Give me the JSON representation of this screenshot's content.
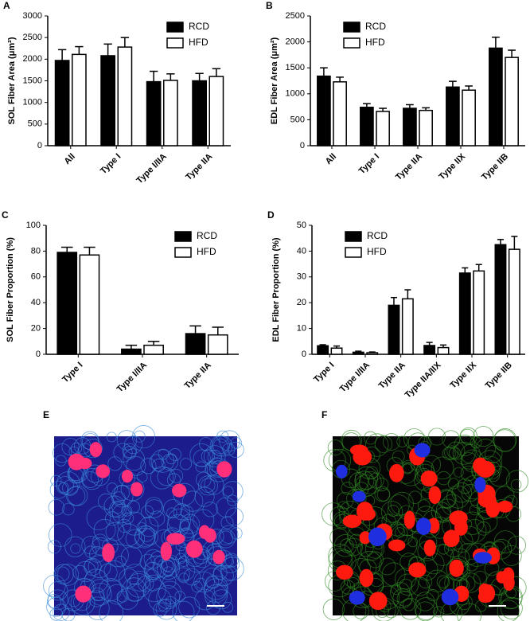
{
  "chart_data": [
    {
      "type": "bar",
      "panel": "A",
      "ylabel": "SOL Fiber Area (μm²)",
      "categories": [
        "All",
        "Type I",
        "Type I/IIA",
        "Type IIA"
      ],
      "series": [
        {
          "name": "RCD",
          "color": "#000000",
          "values": [
            1970,
            2080,
            1480,
            1500
          ],
          "errors": [
            250,
            270,
            240,
            170
          ]
        },
        {
          "name": "HFD",
          "color": "#ffffff",
          "values": [
            2110,
            2280,
            1510,
            1600
          ],
          "errors": [
            180,
            220,
            150,
            180
          ]
        }
      ],
      "ylim": [
        0,
        3000
      ],
      "yticks": [
        0,
        500,
        1000,
        1500,
        2000,
        2500,
        3000
      ],
      "legend": "upper right"
    },
    {
      "type": "bar",
      "panel": "B",
      "ylabel": "EDL Fiber Area (μm²)",
      "categories": [
        "All",
        "Type I",
        "Type IIA",
        "Type IIX",
        "Type IIB"
      ],
      "series": [
        {
          "name": "RCD",
          "color": "#000000",
          "values": [
            1340,
            740,
            720,
            1130,
            1880
          ],
          "errors": [
            160,
            70,
            70,
            110,
            210
          ]
        },
        {
          "name": "HFD",
          "color": "#ffffff",
          "values": [
            1230,
            660,
            680,
            1070,
            1700
          ],
          "errors": [
            90,
            60,
            50,
            80,
            140
          ]
        }
      ],
      "ylim": [
        0,
        2500
      ],
      "yticks": [
        0,
        500,
        1000,
        1500,
        2000,
        2500
      ],
      "legend": "upper left"
    },
    {
      "type": "bar",
      "panel": "C",
      "ylabel": "SOL Fiber Proportion (%)",
      "categories": [
        "Type I",
        "Type I/IIA",
        "Type IIA"
      ],
      "series": [
        {
          "name": "RCD",
          "color": "#000000",
          "values": [
            79,
            4,
            16
          ],
          "errors": [
            4,
            3,
            6
          ]
        },
        {
          "name": "HFD",
          "color": "#ffffff",
          "values": [
            77,
            7,
            15
          ],
          "errors": [
            6,
            3,
            6
          ]
        }
      ],
      "ylim": [
        0,
        100
      ],
      "yticks": [
        0,
        20,
        40,
        60,
        80,
        100
      ],
      "legend": "upper right"
    },
    {
      "type": "bar",
      "panel": "D",
      "ylabel": "EDL Fiber Proportion (%)",
      "categories": [
        "Type I",
        "Type I/IIA",
        "Type IIA",
        "Type IIA/IIX",
        "Type IIX",
        "Type IIB"
      ],
      "series": [
        {
          "name": "RCD",
          "color": "#000000",
          "values": [
            3.3,
            0.8,
            19,
            3.4,
            31.5,
            42.5
          ],
          "errors": [
            0.4,
            0.4,
            3,
            1.2,
            2,
            2
          ]
        },
        {
          "name": "HFD",
          "color": "#ffffff",
          "values": [
            2.4,
            0.6,
            21.5,
            2.6,
            32.3,
            40.7
          ],
          "errors": [
            0.8,
            0.3,
            3.5,
            1,
            2.5,
            5
          ]
        }
      ],
      "ylim": [
        0,
        50
      ],
      "yticks": [
        0,
        10,
        20,
        30,
        40,
        50
      ],
      "legend": "upper left"
    }
  ],
  "images": [
    {
      "panel": "E"
    },
    {
      "panel": "F"
    }
  ]
}
